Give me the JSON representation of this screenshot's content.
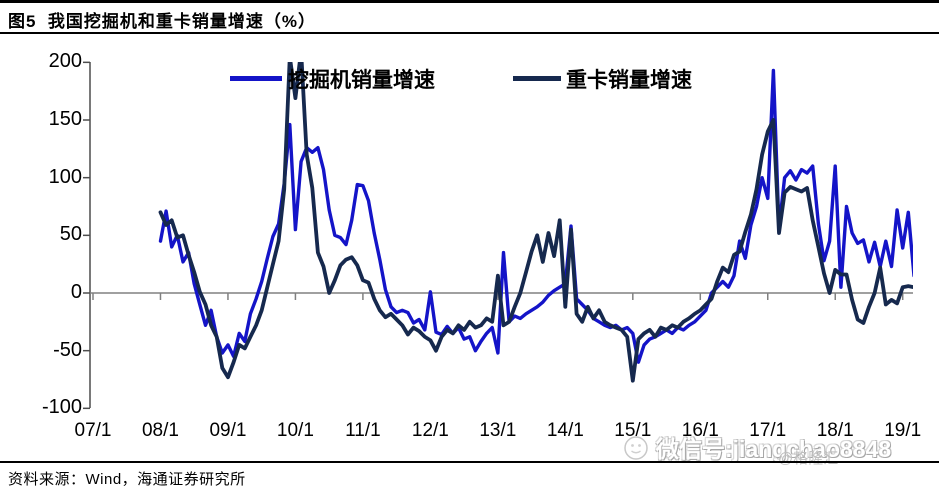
{
  "header": {
    "title": "图5  我国挖掘机和重卡销量增速（%）"
  },
  "footer": {
    "source_text": "资料来源：Wind，海通证券研究所"
  },
  "watermarks": {
    "gelonghui": "@格隆汇",
    "wechat_badge": "微信号:jiangchao8848",
    "wechat_icon": "wechat-smiley"
  },
  "colors": {
    "excavator_line": "#1414c8",
    "heavy_truck_line": "#16294e",
    "zero_axis": "#808080",
    "y_axis": "#4d4d4d"
  },
  "chart_data": {
    "type": "line",
    "title": "图5 我国挖掘机和重卡销量增速（%）",
    "xlabel": "",
    "ylabel": "",
    "ylim": [
      -100,
      200
    ],
    "y_ticks": [
      200,
      150,
      100,
      50,
      0,
      -50,
      -100
    ],
    "x_tick_labels": [
      "07/1",
      "08/1",
      "09/1",
      "10/1",
      "11/1",
      "12/1",
      "13/1",
      "14/1",
      "15/1",
      "16/1",
      "17/1",
      "18/1",
      "19/1"
    ],
    "x_months_per_tick": 12,
    "x_start_month": "2007-01",
    "grid": "zero-line-only",
    "legend_position": "top-center",
    "series": [
      {
        "name": "挖掘机销量增速",
        "color": "#1414c8",
        "values": [
          null,
          null,
          null,
          null,
          null,
          null,
          null,
          null,
          null,
          null,
          null,
          null,
          45,
          71,
          40,
          50,
          27,
          35,
          8,
          -10,
          -28,
          -15,
          -38,
          -52,
          -45,
          -55,
          -35,
          -42,
          -18,
          -5,
          10,
          30,
          49,
          60,
          95,
          146,
          55,
          114,
          126,
          122,
          126,
          107,
          72,
          50,
          48,
          42,
          63,
          94,
          93,
          80,
          52,
          29,
          3,
          -12,
          -17,
          -15,
          -17,
          -26,
          -23,
          -32,
          1,
          -34,
          -36,
          -29,
          -35,
          -30,
          -40,
          -38,
          -50,
          -42,
          -35,
          -30,
          -52,
          35,
          -25,
          -20,
          -22,
          -18,
          -15,
          -12,
          -8,
          -2,
          2,
          5,
          8,
          58,
          -5,
          -10,
          -15,
          -22,
          -25,
          -28,
          -30,
          -28,
          -32,
          -30,
          -35,
          -60,
          -45,
          -40,
          -38,
          -35,
          -32,
          -35,
          -30,
          -32,
          -28,
          -25,
          -20,
          -15,
          0,
          5,
          10,
          5,
          15,
          45,
          30,
          59,
          75,
          100,
          82,
          193,
          56,
          100,
          106,
          98,
          107,
          104,
          110,
          60,
          28,
          45,
          110,
          5,
          75,
          52,
          43,
          46,
          27,
          44,
          23,
          45,
          23,
          72,
          39,
          70,
          15
        ]
      },
      {
        "name": "重卡销量增速",
        "color": "#16294e",
        "values": [
          null,
          null,
          null,
          null,
          null,
          null,
          null,
          null,
          null,
          null,
          null,
          null,
          70,
          59,
          63,
          48,
          50,
          33,
          18,
          1,
          -10,
          -28,
          -38,
          -65,
          -73,
          -60,
          -45,
          -48,
          -38,
          -28,
          -15,
          5,
          25,
          45,
          90,
          205,
          169,
          210,
          120,
          91,
          35,
          23,
          0,
          11,
          24,
          29,
          31,
          24,
          11,
          9,
          -5,
          -15,
          -21,
          -18,
          -23,
          -28,
          -36,
          -30,
          -33,
          -38,
          -41,
          -50,
          -38,
          -32,
          -35,
          -28,
          -32,
          -25,
          -30,
          -28,
          -22,
          -25,
          15,
          -28,
          -25,
          -12,
          0,
          18,
          36,
          50,
          27,
          52,
          32,
          63,
          -12,
          55,
          -18,
          -25,
          -12,
          -22,
          -15,
          -25,
          -28,
          -30,
          -32,
          -38,
          -76,
          -40,
          -35,
          -32,
          -38,
          -30,
          -32,
          -28,
          -30,
          -25,
          -22,
          -18,
          -15,
          -10,
          -5,
          10,
          22,
          18,
          33,
          36,
          53,
          68,
          90,
          120,
          140,
          150,
          52,
          87,
          92,
          90,
          88,
          91,
          63,
          40,
          17,
          0,
          20,
          16,
          16,
          -6,
          -23,
          -26,
          -12,
          0,
          22,
          -10,
          -6,
          -9,
          5,
          6,
          5
        ]
      }
    ]
  }
}
